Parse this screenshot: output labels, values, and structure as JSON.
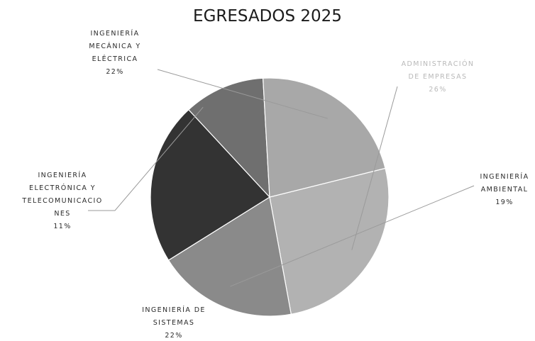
{
  "chart_data": {
    "type": "pie",
    "title": "EGRESADOS 2025",
    "slices": [
      {
        "label_lines": [
          "ADMINISTRACIÓN",
          "DE EMPRESAS"
        ],
        "pct_text": "26%",
        "value": 26,
        "color": "#b2b2b2"
      },
      {
        "label_lines": [
          "INGENIERÍA",
          "AMBIENTAL"
        ],
        "pct_text": "19%",
        "value": 19,
        "color": "#8a8a8a"
      },
      {
        "label_lines": [
          "INGENIERÍA DE",
          "SISTEMAS"
        ],
        "pct_text": "22%",
        "value": 22,
        "color": "#333333"
      },
      {
        "label_lines": [
          "INGENIERÍA",
          "ELECTRÓNICA Y",
          "TELECOMUNICACIO",
          "NES"
        ],
        "pct_text": "11%",
        "value": 11,
        "color": "#6f6f6f"
      },
      {
        "label_lines": [
          "INGENIERÍA",
          "MECÁNICA Y",
          "ELÉCTRICA"
        ],
        "pct_text": "22%",
        "value": 22,
        "color": "#a8a8a8"
      }
    ]
  }
}
